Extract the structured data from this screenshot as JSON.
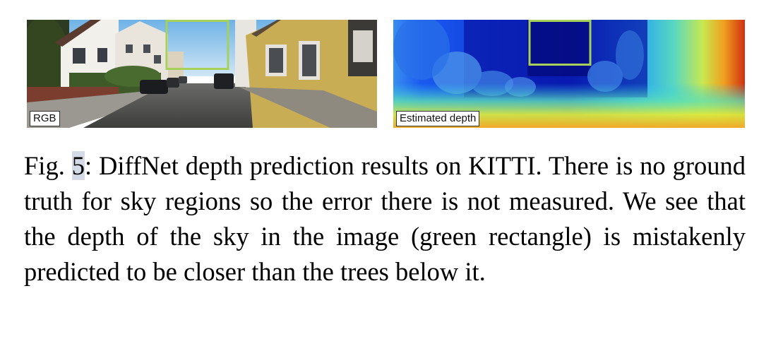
{
  "figure": {
    "panels": [
      {
        "label": "RGB"
      },
      {
        "label": "Estimated depth"
      }
    ],
    "highlight_color": "#a6d05a",
    "caption": {
      "prefix": "Fig. ",
      "number": "5",
      "text": ": DiffNet depth prediction results on KITTI. There is no ground truth for sky regions so the error there is not measured. We see that the depth of the sky in the image (green rectangle) is mistakenly predicted to be closer than the trees below it."
    }
  }
}
